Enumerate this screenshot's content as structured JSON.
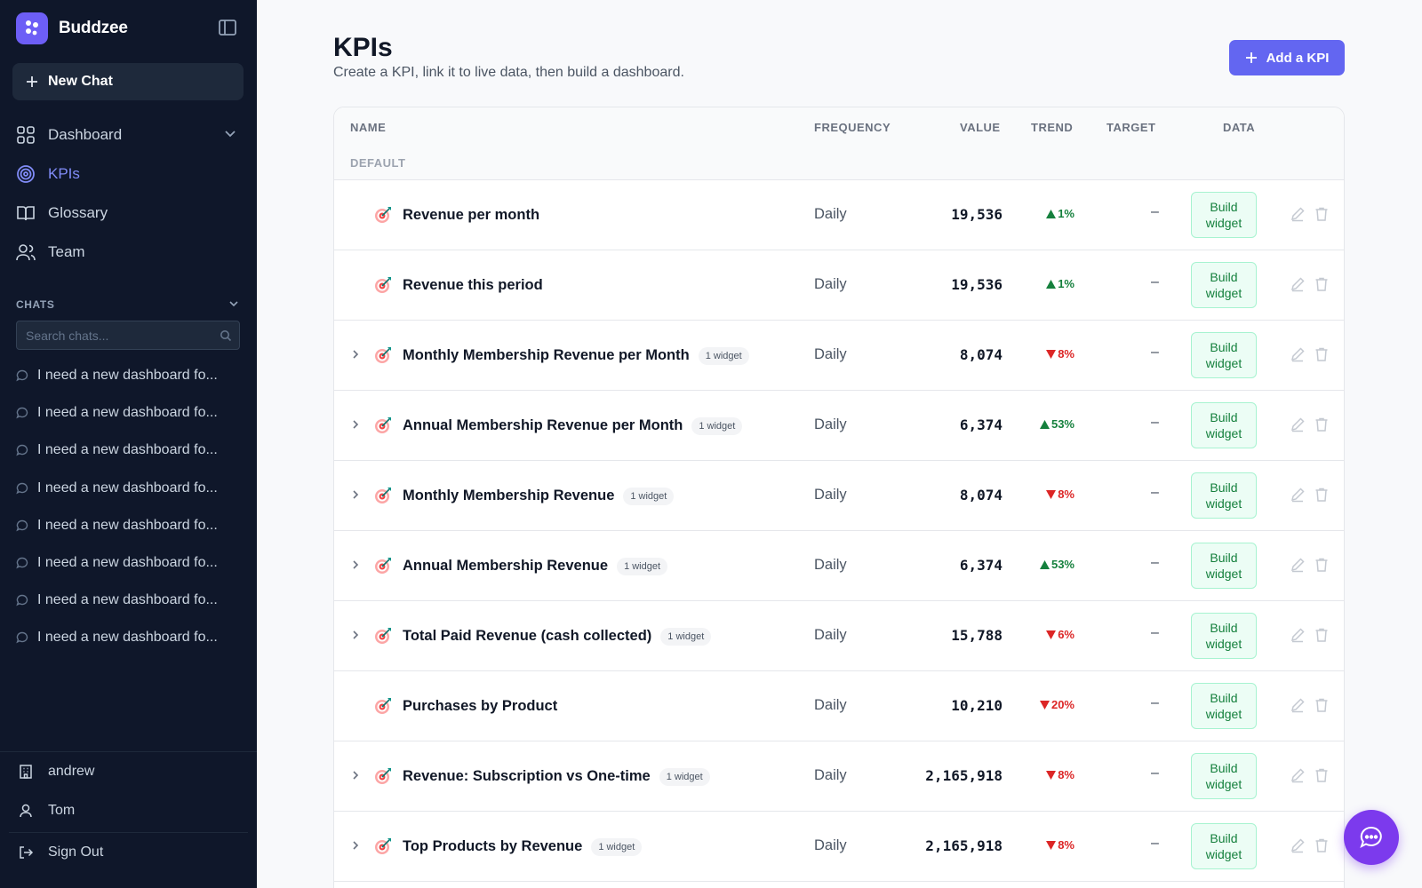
{
  "app": {
    "name": "Buddzee",
    "new_chat_label": "New Chat"
  },
  "nav": {
    "items": [
      {
        "label": "Dashboard",
        "icon": "grid-icon"
      },
      {
        "label": "KPIs",
        "icon": "target-icon"
      },
      {
        "label": "Glossary",
        "icon": "book-icon"
      },
      {
        "label": "Team",
        "icon": "users-icon"
      }
    ]
  },
  "chats": {
    "heading": "CHATS",
    "search_placeholder": "Search chats...",
    "items": [
      "I need a new dashboard fo...",
      "I need a new dashboard fo...",
      "I need a new dashboard fo...",
      "I need a new dashboard fo...",
      "I need a new dashboard fo...",
      "I need a new dashboard fo...",
      "I need a new dashboard fo...",
      "I need a new dashboard fo..."
    ]
  },
  "footer": {
    "org": "andrew",
    "user": "Tom",
    "sign_out": "Sign Out"
  },
  "page": {
    "title": "KPIs",
    "subtitle": "Create a KPI, link it to live data, then build a dashboard.",
    "add_button": "Add a KPI"
  },
  "table": {
    "columns": {
      "name": "NAME",
      "frequency": "FREQUENCY",
      "value": "VALUE",
      "trend": "TREND",
      "target": "TARGET",
      "data": "DATA"
    },
    "group": "DEFAULT",
    "build_label": "Build\nwidget",
    "rows": [
      {
        "name": "Revenue per month",
        "badge": "",
        "expandable": false,
        "frequency": "Daily",
        "value": "19,536",
        "trend": "1%",
        "trend_dir": "up",
        "target": "–"
      },
      {
        "name": "Revenue this period",
        "badge": "",
        "expandable": false,
        "frequency": "Daily",
        "value": "19,536",
        "trend": "1%",
        "trend_dir": "up",
        "target": "–"
      },
      {
        "name": "Monthly Membership Revenue per Month",
        "badge": "1 widget",
        "expandable": true,
        "frequency": "Daily",
        "value": "8,074",
        "trend": "8%",
        "trend_dir": "down",
        "target": "–"
      },
      {
        "name": "Annual Membership Revenue per Month",
        "badge": "1 widget",
        "expandable": true,
        "frequency": "Daily",
        "value": "6,374",
        "trend": "53%",
        "trend_dir": "up",
        "target": "–"
      },
      {
        "name": "Monthly Membership Revenue",
        "badge": "1 widget",
        "expandable": true,
        "frequency": "Daily",
        "value": "8,074",
        "trend": "8%",
        "trend_dir": "down",
        "target": "–"
      },
      {
        "name": "Annual Membership Revenue",
        "badge": "1 widget",
        "expandable": true,
        "frequency": "Daily",
        "value": "6,374",
        "trend": "53%",
        "trend_dir": "up",
        "target": "–"
      },
      {
        "name": "Total Paid Revenue (cash collected)",
        "badge": "1 widget",
        "expandable": true,
        "frequency": "Daily",
        "value": "15,788",
        "trend": "6%",
        "trend_dir": "down",
        "target": "–"
      },
      {
        "name": "Purchases by Product",
        "badge": "",
        "expandable": false,
        "frequency": "Daily",
        "value": "10,210",
        "trend": "20%",
        "trend_dir": "down",
        "target": "–"
      },
      {
        "name": "Revenue: Subscription vs One-time",
        "badge": "1 widget",
        "expandable": true,
        "frequency": "Daily",
        "value": "2,165,918",
        "trend": "8%",
        "trend_dir": "down",
        "target": "–"
      },
      {
        "name": "Top Products by Revenue",
        "badge": "1 widget",
        "expandable": true,
        "frequency": "Daily",
        "value": "2,165,918",
        "trend": "8%",
        "trend_dir": "down",
        "target": "–"
      }
    ]
  },
  "colors": {
    "sidebar_bg": "#0f172a",
    "accent": "#6366f1",
    "trend_up": "#15803d",
    "trend_down": "#dc2626"
  }
}
